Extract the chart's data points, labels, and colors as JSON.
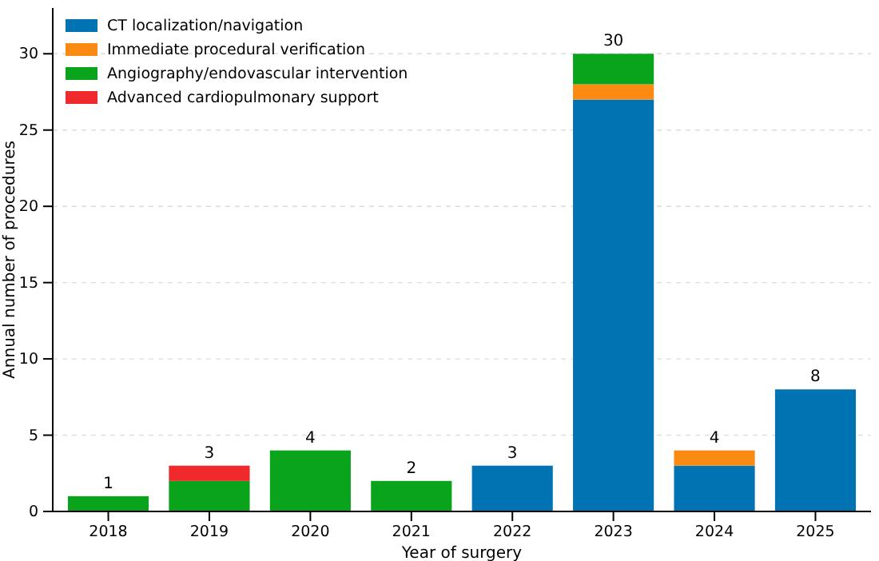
{
  "chart_data": {
    "type": "bar",
    "stacked": true,
    "xlabel": "Year of surgery",
    "ylabel": "Annual number of procedures",
    "categories": [
      "2018",
      "2019",
      "2020",
      "2021",
      "2022",
      "2023",
      "2024",
      "2025"
    ],
    "series": [
      {
        "name": "CT localization/navigation",
        "color": "#0173b2",
        "values": [
          0,
          0,
          0,
          0,
          3,
          27,
          3,
          8
        ]
      },
      {
        "name": "Immediate procedural verification",
        "color": "#fb8a12",
        "values": [
          0,
          0,
          0,
          0,
          0,
          1,
          1,
          0
        ]
      },
      {
        "name": "Angiography/endovascular intervention",
        "color": "#0aa31c",
        "values": [
          1,
          2,
          4,
          2,
          0,
          2,
          0,
          0
        ]
      },
      {
        "name": "Advanced cardiopulmonary support",
        "color": "#f0292c",
        "values": [
          0,
          1,
          0,
          0,
          0,
          0,
          0,
          0
        ]
      }
    ],
    "totals": [
      "1",
      "3",
      "4",
      "2",
      "3",
      "30",
      "4",
      "8"
    ],
    "ylim": [
      0,
      33
    ],
    "yticks": [
      0,
      5,
      10,
      15,
      20,
      25,
      30
    ],
    "grid": "y",
    "legend": "top left"
  }
}
